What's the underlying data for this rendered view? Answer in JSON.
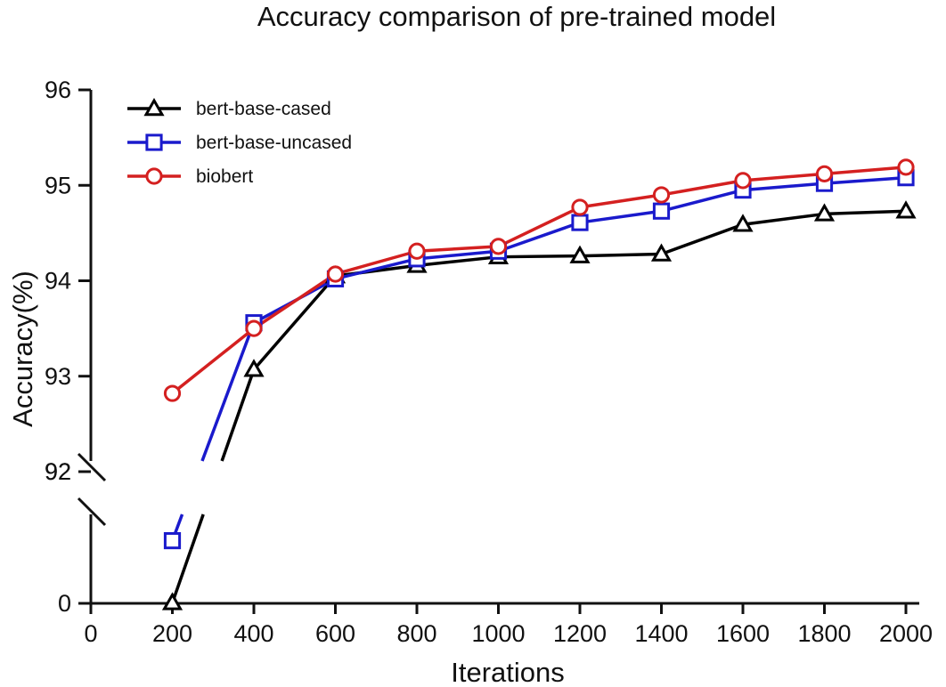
{
  "chart_data": {
    "type": "line",
    "title": "Accuracy comparison of pre-trained model",
    "xlabel": "Iterations",
    "ylabel": "Accuracy(%)",
    "x": [
      200,
      400,
      600,
      800,
      1000,
      1200,
      1400,
      1600,
      1800,
      2000
    ],
    "x_ticks": [
      "0",
      "200",
      "400",
      "600",
      "800",
      "1000",
      "1200",
      "1400",
      "1600",
      "1800",
      "2000"
    ],
    "x_range": [
      0,
      2000
    ],
    "y_axis_break": true,
    "upper_segment": {
      "range": [
        92,
        96
      ],
      "ticks": [
        "92",
        "93",
        "94",
        "95",
        "96"
      ]
    },
    "lower_segment": {
      "range": [
        0,
        92
      ],
      "ticks": [
        "0",
        "92"
      ]
    },
    "series": [
      {
        "name": "bert-base-cased",
        "color": "#000000",
        "marker": "triangle",
        "values": [
          0.5,
          93.07,
          94.05,
          94.16,
          94.25,
          94.26,
          94.28,
          94.59,
          94.7,
          94.73
        ]
      },
      {
        "name": "bert-base-uncased",
        "color": "#1a1acc",
        "marker": "square",
        "values": [
          60.0,
          93.56,
          94.02,
          94.23,
          94.31,
          94.61,
          94.73,
          94.95,
          95.02,
          95.08
        ]
      },
      {
        "name": "biobert",
        "color": "#d42020",
        "marker": "circle",
        "values": [
          92.82,
          93.5,
          94.07,
          94.31,
          94.36,
          94.77,
          94.9,
          95.05,
          95.12,
          95.19
        ]
      }
    ],
    "legend_position": "top-left",
    "grid": false
  }
}
